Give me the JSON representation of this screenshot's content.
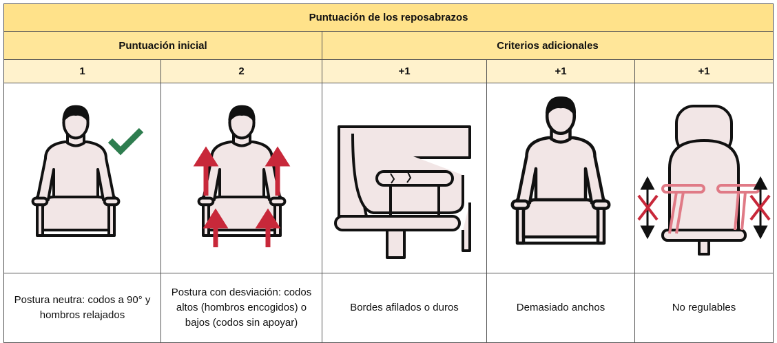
{
  "title": "Puntuación de los reposabrazos",
  "groups": [
    "Puntuación inicial",
    "Criterios adicionales"
  ],
  "scores": [
    "1",
    "2",
    "+1",
    "+1",
    "+1"
  ],
  "captions": [
    "Postura neutra: codos a 90° y hombros relajados",
    "Postura con desviación: codos altos (hombros encogidos) o bajos (codos sin apoyar)",
    "Bordes afilados o duros",
    "Demasiado anchos",
    "No regulables"
  ]
}
